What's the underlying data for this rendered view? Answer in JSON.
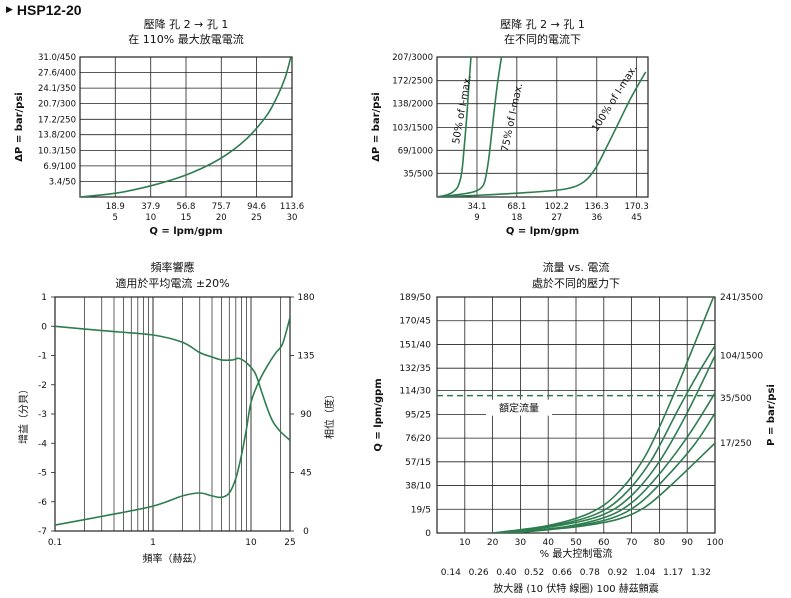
{
  "header": {
    "model": "HSP12-20"
  },
  "colors": {
    "curve": "#2e7d4f",
    "grid": "#222222"
  },
  "chart_data": [
    {
      "id": "chart1",
      "type": "line",
      "title": [
        "壓降 孔 2 → 孔 1",
        "在 110% 最大放電電流"
      ],
      "xlabel": "Q = lpm/gpm",
      "ylabel": "ΔP = bar/psi",
      "xticks": [
        {
          "x": 18.9,
          "label1": "18.9",
          "label2": "5"
        },
        {
          "x": 37.9,
          "label1": "37.9",
          "label2": "10"
        },
        {
          "x": 56.8,
          "label1": "56.8",
          "label2": "15"
        },
        {
          "x": 75.7,
          "label1": "75.7",
          "label2": "20"
        },
        {
          "x": 94.6,
          "label1": "94.6",
          "label2": "25"
        },
        {
          "x": 113.6,
          "label1": "113.6",
          "label2": "30"
        }
      ],
      "yticks": [
        {
          "y": 3.4,
          "label": "3.4/50"
        },
        {
          "y": 6.9,
          "label": "6.9/100"
        },
        {
          "y": 10.3,
          "label": "10.3/150"
        },
        {
          "y": 13.8,
          "label": "13.8/200"
        },
        {
          "y": 17.2,
          "label": "17.2/250"
        },
        {
          "y": 20.7,
          "label": "20.7/300"
        },
        {
          "y": 24.1,
          "label": "24.1/350"
        },
        {
          "y": 27.6,
          "label": "27.6/400"
        },
        {
          "y": 31.0,
          "label": "31.0/450"
        }
      ],
      "xlim": [
        0,
        113.6
      ],
      "ylim": [
        0,
        31.0
      ],
      "series": [
        {
          "points": [
            [
              0,
              0
            ],
            [
              10,
              0.4
            ],
            [
              20,
              0.9
            ],
            [
              30,
              1.7
            ],
            [
              40,
              2.7
            ],
            [
              50,
              3.9
            ],
            [
              60,
              5.4
            ],
            [
              70,
              7.3
            ],
            [
              80,
              9.8
            ],
            [
              90,
              13.2
            ],
            [
              100,
              18.0
            ],
            [
              106,
              22.5
            ],
            [
              110,
              26.5
            ],
            [
              113,
              31.0
            ]
          ]
        }
      ]
    },
    {
      "id": "chart2",
      "type": "line",
      "title": [
        "壓降 孔 2 → 孔 1",
        "在不同的電流下"
      ],
      "xlabel": "Q = lpm/gpm",
      "ylabel": "ΔP = bar/psi",
      "xticks": [
        {
          "x": 34.1,
          "label1": "34.1",
          "label2": "9"
        },
        {
          "x": 68.1,
          "label1": "68.1",
          "label2": "18"
        },
        {
          "x": 102.2,
          "label1": "102.2",
          "label2": "27"
        },
        {
          "x": 136.3,
          "label1": "136.3",
          "label2": "36"
        },
        {
          "x": 170.3,
          "label1": "170.3",
          "label2": "45"
        }
      ],
      "yticks": [
        {
          "y": 35,
          "label": "35/500"
        },
        {
          "y": 69,
          "label": "69/1000"
        },
        {
          "y": 103,
          "label": "103/1500"
        },
        {
          "y": 138,
          "label": "138/2000"
        },
        {
          "y": 172,
          "label": "172/2500"
        },
        {
          "y": 207,
          "label": "207/3000"
        }
      ],
      "xlim": [
        0,
        180
      ],
      "ylim": [
        0,
        207
      ],
      "series": [
        {
          "name": "50% of I-max.",
          "points": [
            [
              0,
              0
            ],
            [
              8,
              3
            ],
            [
              14,
              8
            ],
            [
              18,
              16
            ],
            [
              21,
              35
            ],
            [
              23,
              70
            ],
            [
              25,
              110
            ],
            [
              27,
              160
            ],
            [
              29,
              207
            ]
          ]
        },
        {
          "name": "75% of I-max.",
          "points": [
            [
              0,
              0
            ],
            [
              20,
              4
            ],
            [
              32,
              8
            ],
            [
              38,
              14
            ],
            [
              41,
              25
            ],
            [
              44,
              55
            ],
            [
              47,
              100
            ],
            [
              51,
              160
            ],
            [
              55,
              207
            ]
          ]
        },
        {
          "name": "100% of I-max.",
          "points": [
            [
              0,
              0
            ],
            [
              40,
              3
            ],
            [
              80,
              7
            ],
            [
              110,
              12
            ],
            [
              125,
              22
            ],
            [
              135,
              42
            ],
            [
              145,
              75
            ],
            [
              155,
              110
            ],
            [
              165,
              145
            ],
            [
              178,
              185
            ]
          ]
        }
      ],
      "annotations": [
        "50% of I-max.",
        "75% of I-max.",
        "100% of I-max."
      ]
    },
    {
      "id": "chart3",
      "type": "line",
      "title": [
        "頻率響應",
        "適用於平均電流 ±20%"
      ],
      "xlabel": "頻率（赫茲）",
      "ylabel": "增益（分貝）",
      "y2label": "相位（度）",
      "xscale": "log",
      "xlim": [
        0.1,
        25
      ],
      "ylim": [
        -7,
        1
      ],
      "y2lim": [
        0,
        180
      ],
      "xticks": [
        {
          "x": 0.1,
          "label": "0.1"
        },
        {
          "x": 1,
          "label": "1"
        },
        {
          "x": 10,
          "label": "10"
        },
        {
          "x": 25,
          "label": "25"
        }
      ],
      "yticks": [
        {
          "y": 1,
          "label": "1"
        },
        {
          "y": 0,
          "label": "0"
        },
        {
          "y": -1,
          "label": "-1"
        },
        {
          "y": -2,
          "label": "-2"
        },
        {
          "y": -3,
          "label": "-3"
        },
        {
          "y": -4,
          "label": "-4"
        },
        {
          "y": -5,
          "label": "-5"
        },
        {
          "y": -6,
          "label": "-6"
        },
        {
          "y": -7,
          "label": "-7"
        }
      ],
      "y2ticks": [
        {
          "y": 0,
          "label": "0"
        },
        {
          "y": 45,
          "label": "45"
        },
        {
          "y": 90,
          "label": "90"
        },
        {
          "y": 135,
          "label": "135"
        },
        {
          "y": 180,
          "label": "180"
        }
      ],
      "series": [
        {
          "axis": "y",
          "points": [
            [
              0.1,
              0
            ],
            [
              0.3,
              -0.15
            ],
            [
              1,
              -0.3
            ],
            [
              2,
              -0.55
            ],
            [
              3,
              -0.9
            ],
            [
              4,
              -1.05
            ],
            [
              5,
              -1.15
            ],
            [
              6.5,
              -1.15
            ],
            [
              7.5,
              -1.1
            ],
            [
              9,
              -1.25
            ],
            [
              11,
              -1.6
            ],
            [
              13,
              -2.3
            ],
            [
              15,
              -2.9
            ],
            [
              17,
              -3.3
            ],
            [
              20,
              -3.6
            ],
            [
              25,
              -3.9
            ]
          ]
        },
        {
          "axis": "y",
          "points": [
            [
              0.1,
              -6.8
            ],
            [
              0.3,
              -6.5
            ],
            [
              1,
              -6.15
            ],
            [
              2,
              -5.8
            ],
            [
              3,
              -5.7
            ],
            [
              4,
              -5.8
            ],
            [
              5,
              -5.85
            ],
            [
              6,
              -5.7
            ],
            [
              7,
              -5.2
            ],
            [
              8,
              -4.4
            ],
            [
              9,
              -3.5
            ],
            [
              10,
              -2.6
            ],
            [
              12,
              -1.9
            ],
            [
              15,
              -1.3
            ],
            [
              18,
              -0.9
            ],
            [
              21,
              -0.6
            ],
            [
              25,
              0.3
            ]
          ]
        }
      ]
    },
    {
      "id": "chart4",
      "type": "line",
      "title": [
        "流量 vs. 電流",
        "處於不同的壓力下"
      ],
      "xlabel": "% 最大控制電流",
      "xlabel2": "放大器 (10 伏特 線圈) 100 赫茲顫震",
      "ylabel": "Q = lpm/gpm",
      "y2label": "P = bar/psi",
      "xlim": [
        0,
        100
      ],
      "ylim": [
        0,
        189
      ],
      "xticks": [
        {
          "x": 0,
          "label": "0"
        },
        {
          "x": 10,
          "label": "10"
        },
        {
          "x": 20,
          "label": "20"
        },
        {
          "x": 30,
          "label": "30"
        },
        {
          "x": 40,
          "label": "40"
        },
        {
          "x": 50,
          "label": "50"
        },
        {
          "x": 60,
          "label": "60"
        },
        {
          "x": 70,
          "label": "70"
        },
        {
          "x": 80,
          "label": "80"
        },
        {
          "x": 90,
          "label": "90"
        },
        {
          "x": 100,
          "label": "100"
        }
      ],
      "xticks2": [
        "0.14",
        "0.26",
        "0.40",
        "0.52",
        "0.66",
        "0.78",
        "0.92",
        "1.04",
        "1.17",
        "1.32"
      ],
      "yticks": [
        {
          "y": 0,
          "label": "0"
        },
        {
          "y": 19,
          "label": "19/5"
        },
        {
          "y": 38,
          "label": "38/10"
        },
        {
          "y": 57,
          "label": "57/15"
        },
        {
          "y": 76,
          "label": "76/20"
        },
        {
          "y": 95,
          "label": "95/25"
        },
        {
          "y": 114,
          "label": "114/30"
        },
        {
          "y": 132,
          "label": "132/35"
        },
        {
          "y": 151,
          "label": "151/40"
        },
        {
          "y": 170,
          "label": "170/45"
        },
        {
          "y": 189,
          "label": "189/50"
        }
      ],
      "right_labels": [
        {
          "y": 189,
          "label": "241/3500"
        },
        {
          "y": 142,
          "label": "104/1500"
        },
        {
          "y": 108,
          "label": "35/500"
        },
        {
          "y": 72,
          "label": "17/250"
        }
      ],
      "rated_flow": {
        "y": 110,
        "label": "額定流量"
      },
      "series": [
        {
          "points": [
            [
              20,
              0
            ],
            [
              40,
              6
            ],
            [
              55,
              16
            ],
            [
              65,
              32
            ],
            [
              75,
              62
            ],
            [
              85,
              110
            ],
            [
              92,
              148
            ],
            [
              100,
              192
            ]
          ]
        },
        {
          "points": [
            [
              22,
              0
            ],
            [
              42,
              6
            ],
            [
              57,
              15
            ],
            [
              67,
              30
            ],
            [
              77,
              58
            ],
            [
              87,
              100
            ],
            [
              94,
              128
            ],
            [
              100,
              150
            ]
          ]
        },
        {
          "points": [
            [
              24,
              0
            ],
            [
              44,
              6
            ],
            [
              59,
              14
            ],
            [
              69,
              28
            ],
            [
              79,
              54
            ],
            [
              89,
              92
            ],
            [
              100,
              142
            ]
          ]
        },
        {
          "points": [
            [
              25,
              0
            ],
            [
              46,
              5
            ],
            [
              61,
              13
            ],
            [
              71,
              26
            ],
            [
              81,
              50
            ],
            [
              91,
              80
            ],
            [
              100,
              112
            ]
          ]
        },
        {
          "points": [
            [
              26,
              0
            ],
            [
              48,
              5
            ],
            [
              63,
              12
            ],
            [
              73,
              24
            ],
            [
              83,
              46
            ],
            [
              93,
              72
            ],
            [
              100,
              96
            ]
          ]
        },
        {
          "points": [
            [
              27,
              0
            ],
            [
              50,
              5
            ],
            [
              65,
              11
            ],
            [
              75,
              21
            ],
            [
              85,
              40
            ],
            [
              100,
              72
            ]
          ]
        }
      ]
    }
  ]
}
